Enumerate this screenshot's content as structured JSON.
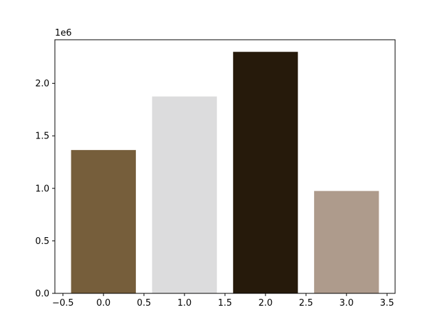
{
  "chart_data": {
    "type": "bar",
    "x": [
      0,
      1,
      2,
      3
    ],
    "values": [
      1365000,
      1875000,
      2300000,
      975000
    ],
    "bar_width": 0.8,
    "colors": [
      "#765e3b",
      "#dcdcdd",
      "#261a0b",
      "#ae9b8c"
    ],
    "xlim": [
      -0.6,
      3.6
    ],
    "ylim": [
      0,
      2415000
    ],
    "xticks": [
      -0.5,
      0.0,
      0.5,
      1.0,
      1.5,
      2.0,
      2.5,
      3.0,
      3.5
    ],
    "xtick_labels": [
      "−0.5",
      "0.0",
      "0.5",
      "1.0",
      "1.5",
      "2.0",
      "2.5",
      "3.0",
      "3.5"
    ],
    "yticks": [
      0,
      500000,
      1000000,
      1500000,
      2000000
    ],
    "ytick_labels": [
      "0.0",
      "0.5",
      "1.0",
      "1.5",
      "2.0"
    ],
    "y_offset_label": "1e6",
    "title": "",
    "xlabel": "",
    "ylabel": "",
    "grid": false,
    "legend": "none"
  }
}
